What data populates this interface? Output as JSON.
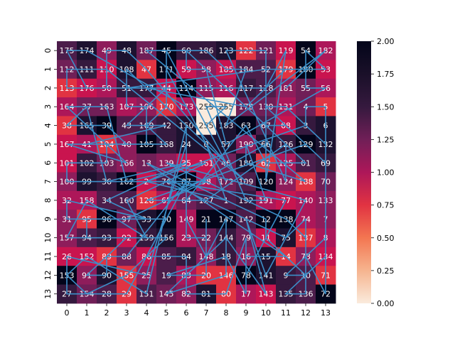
{
  "chart_data": {
    "type": "heatmap",
    "title": "",
    "xlabel": "",
    "ylabel": "",
    "x_ticks": [
      "0",
      "1",
      "2",
      "3",
      "4",
      "5",
      "6",
      "7",
      "8",
      "9",
      "10",
      "11",
      "12",
      "13"
    ],
    "y_ticks": [
      "0",
      "1",
      "2",
      "3",
      "4",
      "5",
      "6",
      "7",
      "8",
      "9",
      "10",
      "11",
      "12",
      "13"
    ],
    "annotations": [
      [
        175,
        174,
        49,
        48,
        187,
        45,
        60,
        186,
        123,
        122,
        121,
        119,
        54,
        182
      ],
      [
        112,
        111,
        110,
        108,
        47,
        171,
        59,
        58,
        185,
        184,
        52,
        179,
        180,
        53
      ],
      [
        113,
        176,
        50,
        51,
        177,
        44,
        114,
        115,
        116,
        117,
        118,
        181,
        55,
        56
      ],
      [
        164,
        37,
        163,
        107,
        106,
        170,
        173,
        255,
        255,
        178,
        130,
        131,
        4,
        5
      ],
      [
        38,
        165,
        39,
        43,
        169,
        42,
        150,
        255,
        183,
        63,
        67,
        68,
        3,
        6
      ],
      [
        167,
        41,
        104,
        40,
        105,
        168,
        24,
        0,
        57,
        190,
        66,
        126,
        129,
        132
      ],
      [
        101,
        102,
        103,
        166,
        13,
        139,
        35,
        161,
        46,
        189,
        62,
        125,
        61,
        69
      ],
      [
        100,
        99,
        36,
        162,
        2,
        76,
        87,
        98,
        172,
        109,
        120,
        124,
        188,
        70
      ],
      [
        32,
        158,
        34,
        160,
        128,
        65,
        64,
        127,
        1,
        192,
        191,
        77,
        140,
        133
      ],
      [
        31,
        95,
        96,
        97,
        33,
        30,
        149,
        21,
        147,
        142,
        12,
        138,
        74,
        7
      ],
      [
        157,
        94,
        93,
        92,
        159,
        156,
        23,
        22,
        144,
        79,
        11,
        75,
        137,
        8
      ],
      [
        26,
        152,
        89,
        88,
        86,
        85,
        84,
        148,
        18,
        16,
        15,
        14,
        73,
        134
      ],
      [
        153,
        91,
        90,
        155,
        25,
        19,
        83,
        20,
        146,
        78,
        141,
        9,
        10,
        71
      ],
      [
        27,
        154,
        28,
        29,
        151,
        145,
        82,
        81,
        80,
        17,
        143,
        135,
        136,
        72
      ]
    ],
    "colorbar": {
      "min": 0.0,
      "max": 2.0,
      "ticks": [
        "0.00",
        "0.25",
        "0.50",
        "0.75",
        "1.00",
        "1.25",
        "1.50",
        "1.75",
        "2.00"
      ],
      "colormap": "rocket_r"
    },
    "overlay_line": {
      "color": "#3b8fc8",
      "path_order": "increasing annotation value",
      "description_values": "cells visited in order of their annotation numbers 0..192"
    },
    "palette": {
      "light": "#faebdd",
      "pink": "#e13342",
      "magenta": "#ad1759",
      "purple": "#701f57",
      "dark": "#35193e",
      "darkest": "#03051a"
    }
  }
}
